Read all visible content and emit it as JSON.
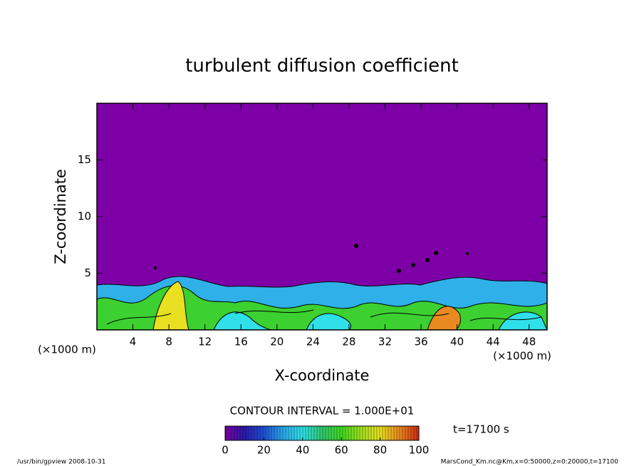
{
  "chart_data": {
    "type": "contour",
    "title": "turbulent diffusion coefficient",
    "x_label": "X-coordinate",
    "y_label": "Z-coordinate",
    "x_unit": "(×1000 m)",
    "xlim": [
      0,
      50
    ],
    "xticks": [
      4,
      8,
      12,
      16,
      20,
      24,
      28,
      32,
      36,
      40,
      44,
      48
    ],
    "ylim": [
      0,
      20
    ],
    "yticks": [
      5,
      10,
      15
    ],
    "background_color": "#7d00a6",
    "contour_interval": "CONTOUR INTERVAL = 1.000E+01",
    "time_label": "t=17100 s",
    "colorbar": {
      "lim": [
        0,
        100
      ],
      "ticks": [
        0,
        20,
        40,
        60,
        80,
        100
      ],
      "colors": [
        "#7d00a6",
        "#2a1aa8",
        "#1f4fd8",
        "#2aa8e8",
        "#30e0e8",
        "#30c870",
        "#40d820",
        "#a0e020",
        "#e8e020",
        "#e88a20",
        "#d02a10"
      ]
    },
    "footer_left": "/usr/bin/gpview   2008-10-31",
    "footer_right": "MarsCond_Km.nc@Km,x=0:50000,z=0:20000,t=17100"
  }
}
